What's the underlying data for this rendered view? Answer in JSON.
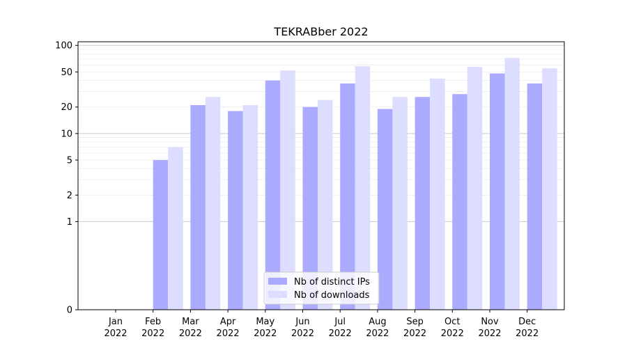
{
  "chart_data": {
    "type": "bar",
    "title": "TEKRABber 2022",
    "xlabel": "",
    "ylabel": "",
    "y_scale": "symlog",
    "ylim": [
      0,
      110
    ],
    "y_ticks": [
      0,
      1,
      2,
      5,
      10,
      20,
      50,
      100
    ],
    "grid": true,
    "legend_position": "bottom-center",
    "categories": [
      [
        "Jan",
        "2022"
      ],
      [
        "Feb",
        "2022"
      ],
      [
        "Mar",
        "2022"
      ],
      [
        "Apr",
        "2022"
      ],
      [
        "May",
        "2022"
      ],
      [
        "Jun",
        "2022"
      ],
      [
        "Jul",
        "2022"
      ],
      [
        "Aug",
        "2022"
      ],
      [
        "Sep",
        "2022"
      ],
      [
        "Oct",
        "2022"
      ],
      [
        "Nov",
        "2022"
      ],
      [
        "Dec",
        "2022"
      ]
    ],
    "series": [
      {
        "name": "Nb of distinct IPs",
        "color": "#aaaaff",
        "values": [
          0,
          5,
          21,
          18,
          40,
          20,
          37,
          19,
          26,
          28,
          48,
          37
        ]
      },
      {
        "name": "Nb of downloads",
        "color": "#ddddff",
        "values": [
          0,
          7,
          26,
          21,
          52,
          24,
          58,
          26,
          42,
          57,
          72,
          55
        ]
      }
    ]
  }
}
